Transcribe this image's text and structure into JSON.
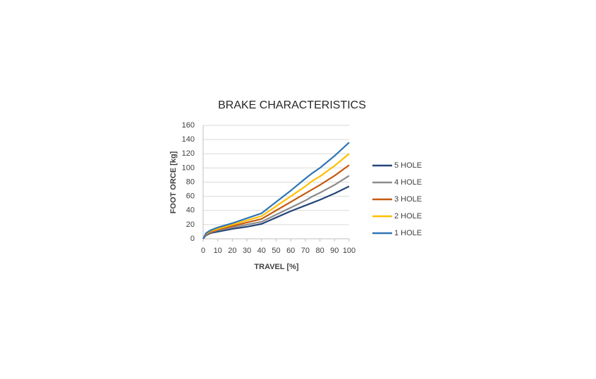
{
  "chart_data": {
    "type": "line",
    "title": "BRAKE CHARACTERISTICS",
    "x_label": "TRAVEL [%]",
    "y_label": "FOOT ORCE [kg]",
    "x": [
      0,
      2,
      5,
      10,
      20,
      30,
      40,
      50,
      60,
      70,
      75,
      80,
      90,
      100
    ],
    "series": [
      {
        "name": "5 HOLE",
        "color": "#264478",
        "values": [
          0,
          5,
          8,
          10,
          14,
          17,
          21,
          30,
          39,
          47,
          51,
          55,
          64,
          74
        ]
      },
      {
        "name": "4 HOLE",
        "color": "#8c8c8c",
        "values": [
          0,
          6,
          9,
          12,
          16,
          20,
          24,
          34,
          44,
          54,
          60,
          65,
          76,
          89
        ]
      },
      {
        "name": "3 HOLE",
        "color": "#c55a11",
        "values": [
          0,
          6,
          10,
          13,
          18,
          23,
          28,
          40,
          52,
          64,
          70,
          76,
          89,
          104
        ]
      },
      {
        "name": "2 HOLE",
        "color": "#ffc000",
        "values": [
          0,
          7,
          11,
          14,
          20,
          26,
          32,
          46,
          60,
          74,
          82,
          88,
          103,
          120
        ]
      },
      {
        "name": "1 HOLE",
        "color": "#2e75b6",
        "values": [
          0,
          8,
          12,
          16,
          22,
          29,
          36,
          52,
          68,
          85,
          93,
          100,
          117,
          136
        ]
      }
    ],
    "xlim": [
      0,
      100
    ],
    "xticks": [
      0,
      10,
      20,
      30,
      40,
      50,
      60,
      70,
      80,
      90,
      100
    ],
    "ylim": [
      0,
      160
    ],
    "yticks": [
      0,
      20,
      40,
      60,
      80,
      100,
      120,
      140,
      160
    ],
    "grid": true,
    "legend": "right"
  }
}
